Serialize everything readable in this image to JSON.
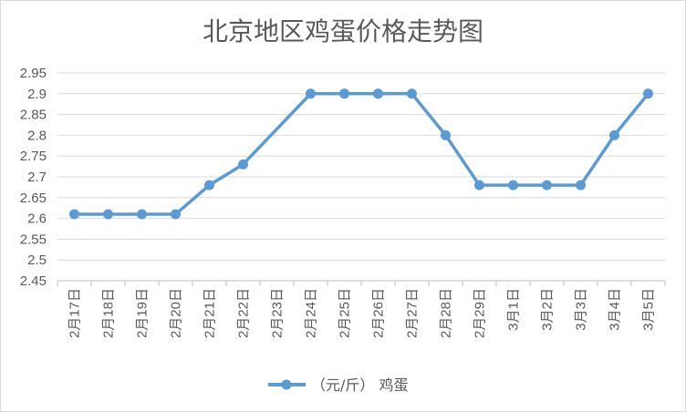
{
  "chart_data": {
    "type": "line",
    "title": "北京地区鸡蛋价格走势图",
    "categories": [
      "2月17日",
      "2月18日",
      "2月19日",
      "2月20日",
      "2月21日",
      "2月22日",
      "2月23日",
      "2月24日",
      "2月25日",
      "2月26日",
      "2月27日",
      "2月28日",
      "2月29日",
      "3月1日",
      "3月2日",
      "3月3日",
      "3月4日",
      "3月5日"
    ],
    "series": [
      {
        "name": "（元/斤） 鸡蛋",
        "values": [
          2.61,
          2.61,
          2.61,
          2.61,
          2.68,
          2.73,
          null,
          2.9,
          2.9,
          2.9,
          2.9,
          2.8,
          2.68,
          2.68,
          2.68,
          2.68,
          2.8,
          2.9
        ],
        "color": "#5b9bd5"
      }
    ],
    "y_ticks": [
      "2.45",
      "2.5",
      "2.55",
      "2.6",
      "2.65",
      "2.7",
      "2.75",
      "2.8",
      "2.85",
      "2.9",
      "2.95"
    ],
    "ylim": [
      2.45,
      2.95
    ],
    "grid": true,
    "legend_position": "bottom"
  }
}
